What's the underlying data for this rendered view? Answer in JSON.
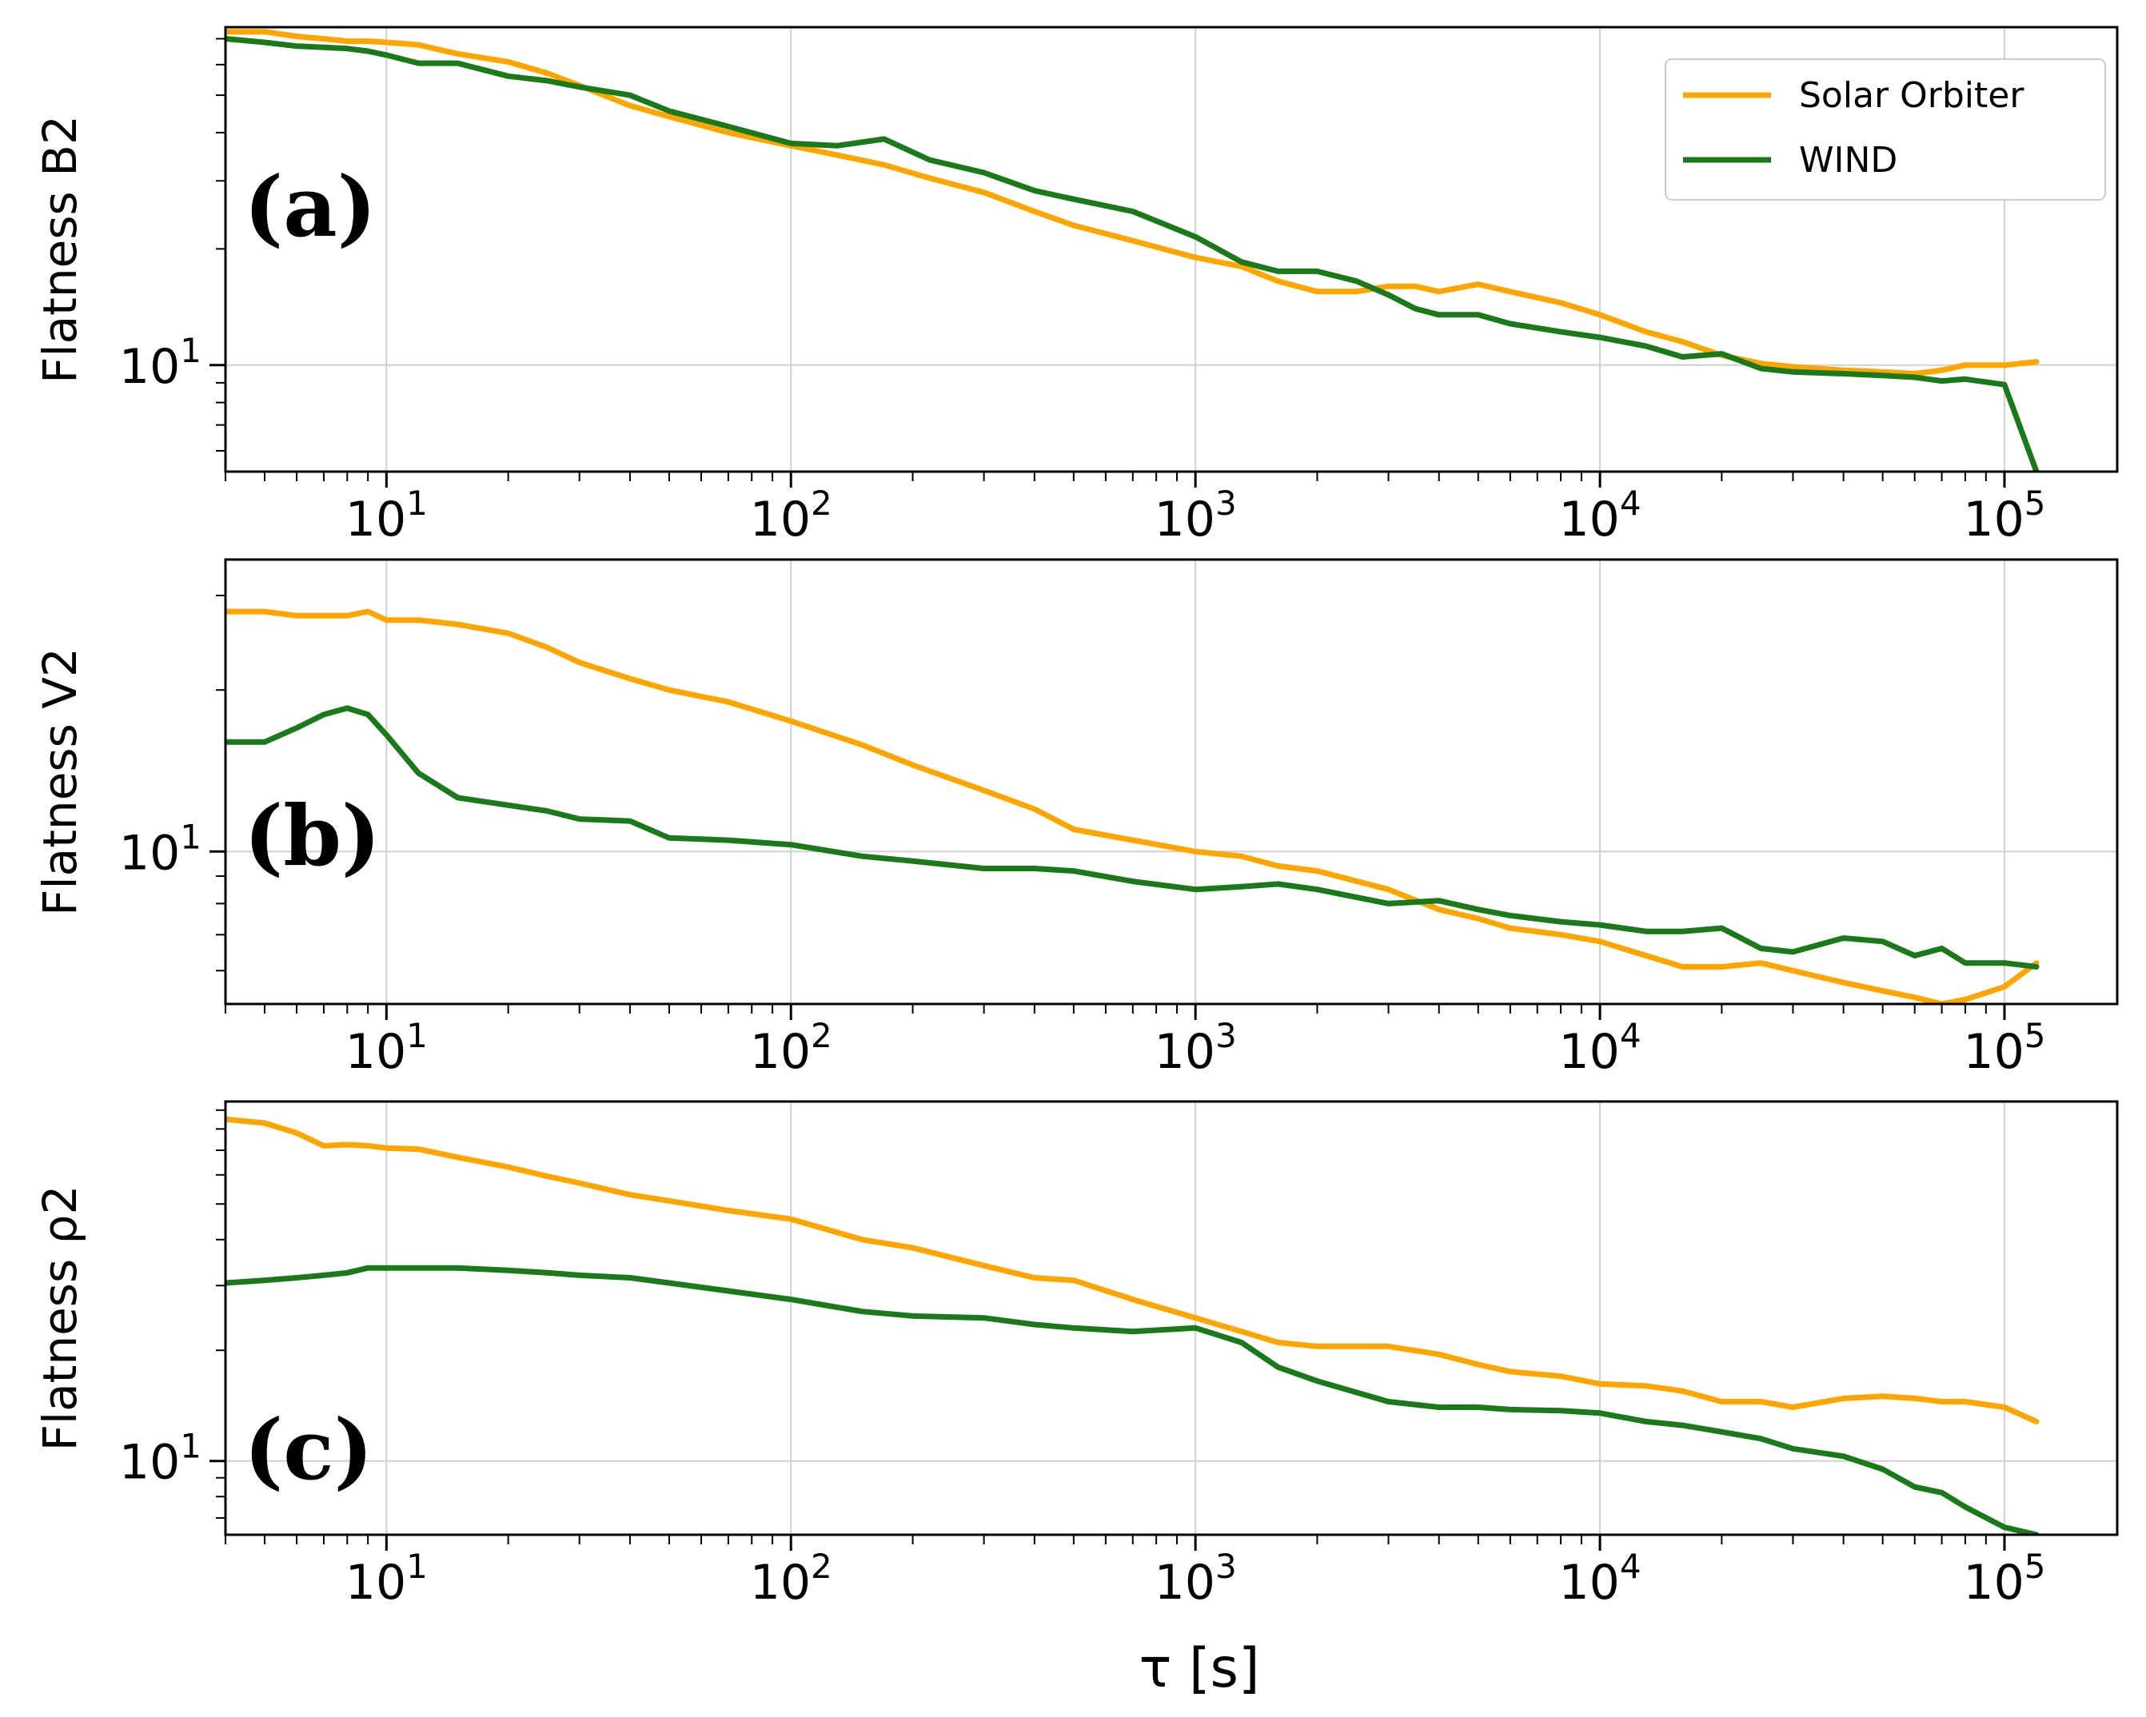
{
  "figure": {
    "xlabel": "τ [s]",
    "legend": {
      "placement": "top-right",
      "entries": [
        {
          "label": "Solar Orbiter",
          "color": "#FFA500"
        },
        {
          "label": "WIND",
          "color": "#1A7A1A"
        }
      ]
    }
  },
  "chart_data": [
    {
      "type": "line",
      "panel": "(a)",
      "ylabel": "Flatness B2",
      "xscale": "log",
      "yscale": "log",
      "xlim": [
        4,
        190000
      ],
      "ylim": [
        5.3,
        75
      ],
      "grid": true,
      "xtick_labels": [
        {
          "value": 10,
          "base": "10",
          "exp": "1"
        },
        {
          "value": 100,
          "base": "10",
          "exp": "2"
        },
        {
          "value": 1000,
          "base": "10",
          "exp": "3"
        },
        {
          "value": 10000,
          "base": "10",
          "exp": "4"
        },
        {
          "value": 100000,
          "base": "10",
          "exp": "5"
        }
      ],
      "ytick_labels": [
        {
          "value": 10,
          "base": "10",
          "exp": "1"
        }
      ],
      "series": [
        {
          "name": "Solar Orbiter",
          "x": [
            4,
            5,
            6,
            7,
            8,
            9,
            10,
            12,
            15,
            20,
            25,
            30,
            40,
            50,
            70,
            100,
            130,
            170,
            220,
            300,
            400,
            500,
            700,
            1000,
            1300,
            1600,
            2000,
            2500,
            3000,
            3500,
            4000,
            5000,
            6000,
            8000,
            10000,
            13000,
            16000,
            20000,
            25000,
            30000,
            40000,
            50000,
            60000,
            70000,
            80000,
            100000,
            120000
          ],
          "values": [
            73,
            73,
            71,
            70,
            69,
            69,
            68.5,
            67.5,
            64,
            61,
            57,
            53,
            47,
            44,
            40,
            37,
            35,
            33,
            30.5,
            28,
            25,
            23,
            21,
            19,
            18,
            16.5,
            15.5,
            15.5,
            16,
            16,
            15.5,
            16.2,
            15.5,
            14.5,
            13.5,
            12.2,
            11.5,
            10.6,
            10.1,
            9.9,
            9.7,
            9.6,
            9.5,
            9.7,
            10,
            10,
            10.2
          ]
        },
        {
          "name": "WIND",
          "x": [
            4,
            5,
            6,
            7,
            8,
            9,
            10,
            12,
            15,
            20,
            25,
            30,
            40,
            50,
            70,
            100,
            130,
            170,
            220,
            300,
            400,
            500,
            700,
            1000,
            1300,
            1600,
            2000,
            2500,
            3000,
            3500,
            4000,
            5000,
            6000,
            8000,
            10000,
            13000,
            16000,
            20000,
            25000,
            30000,
            40000,
            50000,
            60000,
            70000,
            80000,
            100000,
            120000
          ],
          "values": [
            70,
            68.5,
            67,
            66.5,
            66,
            65,
            63.5,
            60.5,
            60.5,
            56,
            54.5,
            52.5,
            50,
            45.5,
            41.5,
            37.5,
            37,
            38.5,
            34,
            31.5,
            28.3,
            26.9,
            25,
            21.5,
            18.5,
            17.5,
            17.5,
            16.5,
            15.2,
            14,
            13.5,
            13.5,
            12.8,
            12.2,
            11.8,
            11.2,
            10.5,
            10.7,
            9.8,
            9.6,
            9.5,
            9.4,
            9.3,
            9.1,
            9.2,
            8.9,
            5.3
          ]
        }
      ]
    },
    {
      "type": "line",
      "panel": "(b)",
      "ylabel": "Flatness V2",
      "xscale": "log",
      "yscale": "log",
      "xlim": [
        4,
        190000
      ],
      "ylim": [
        5.2,
        35
      ],
      "grid": true,
      "xtick_labels": [
        {
          "value": 10,
          "base": "10",
          "exp": "1"
        },
        {
          "value": 100,
          "base": "10",
          "exp": "2"
        },
        {
          "value": 1000,
          "base": "10",
          "exp": "3"
        },
        {
          "value": 10000,
          "base": "10",
          "exp": "4"
        },
        {
          "value": 100000,
          "base": "10",
          "exp": "5"
        }
      ],
      "ytick_labels": [
        {
          "value": 10,
          "base": "10",
          "exp": "1"
        }
      ],
      "series": [
        {
          "name": "Solar Orbiter",
          "x": [
            4,
            5,
            6,
            7,
            8,
            9,
            10,
            12,
            15,
            20,
            25,
            30,
            40,
            50,
            70,
            100,
            150,
            200,
            300,
            400,
            500,
            700,
            1000,
            1300,
            1600,
            2000,
            3000,
            4000,
            5000,
            6000,
            8000,
            10000,
            13000,
            16000,
            20000,
            25000,
            30000,
            40000,
            50000,
            60000,
            70000,
            80000,
            100000,
            120000
          ],
          "values": [
            28,
            28,
            27.5,
            27.5,
            27.5,
            28,
            27,
            27,
            26.5,
            25.5,
            24,
            22.5,
            21,
            20,
            19,
            17.5,
            15.8,
            14.5,
            13,
            12,
            11,
            10.5,
            10,
            9.8,
            9.4,
            9.2,
            8.5,
            7.8,
            7.5,
            7.2,
            7,
            6.8,
            6.4,
            6.1,
            6.1,
            6.2,
            6,
            5.7,
            5.5,
            5.35,
            5.2,
            5.3,
            5.6,
            6.2
          ]
        },
        {
          "name": "WIND",
          "x": [
            4,
            5,
            6,
            7,
            8,
            9,
            10,
            12,
            15,
            20,
            25,
            30,
            40,
            50,
            70,
            100,
            150,
            200,
            300,
            400,
            500,
            700,
            1000,
            1300,
            1600,
            2000,
            3000,
            4000,
            5000,
            6000,
            8000,
            10000,
            13000,
            16000,
            20000,
            25000,
            30000,
            40000,
            50000,
            60000,
            70000,
            80000,
            100000,
            120000
          ],
          "values": [
            16,
            16,
            17,
            18,
            18.5,
            18,
            16.5,
            14,
            12.6,
            12.2,
            11.9,
            11.5,
            11.4,
            10.6,
            10.5,
            10.3,
            9.8,
            9.6,
            9.3,
            9.3,
            9.2,
            8.8,
            8.5,
            8.6,
            8.7,
            8.5,
            8,
            8.1,
            7.8,
            7.6,
            7.4,
            7.3,
            7.1,
            7.1,
            7.2,
            6.6,
            6.5,
            6.9,
            6.8,
            6.4,
            6.6,
            6.2,
            6.2,
            6.1
          ]
        }
      ]
    },
    {
      "type": "line",
      "panel": "(c)",
      "ylabel": "Flatness ρ2",
      "xscale": "log",
      "yscale": "log",
      "xlim": [
        4,
        190000
      ],
      "ylim": [
        6.3,
        95
      ],
      "grid": true,
      "xtick_labels": [
        {
          "value": 10,
          "base": "10",
          "exp": "1"
        },
        {
          "value": 100,
          "base": "10",
          "exp": "2"
        },
        {
          "value": 1000,
          "base": "10",
          "exp": "3"
        },
        {
          "value": 10000,
          "base": "10",
          "exp": "4"
        },
        {
          "value": 100000,
          "base": "10",
          "exp": "5"
        }
      ],
      "ytick_labels": [
        {
          "value": 10,
          "base": "10",
          "exp": "1"
        }
      ],
      "series": [
        {
          "name": "Solar Orbiter",
          "x": [
            4,
            5,
            6,
            7,
            8,
            9,
            10,
            12,
            15,
            20,
            25,
            30,
            40,
            50,
            70,
            100,
            150,
            200,
            300,
            400,
            500,
            700,
            1000,
            1300,
            1600,
            2000,
            3000,
            4000,
            5000,
            6000,
            8000,
            10000,
            13000,
            16000,
            20000,
            25000,
            30000,
            40000,
            50000,
            60000,
            70000,
            80000,
            100000,
            120000
          ],
          "values": [
            85,
            83,
            78,
            72,
            72.5,
            72,
            71,
            70.5,
            67,
            63,
            59.5,
            57,
            53,
            51,
            48,
            45.5,
            40,
            38,
            34,
            31.5,
            31,
            27.5,
            24.5,
            22.5,
            21,
            20.5,
            20.5,
            19.5,
            18.3,
            17.5,
            17,
            16.2,
            16,
            15.5,
            14.5,
            14.5,
            14,
            14.8,
            15,
            14.8,
            14.5,
            14.5,
            14,
            12.8
          ]
        },
        {
          "name": "WIND",
          "x": [
            4,
            5,
            6,
            7,
            8,
            9,
            10,
            12,
            15,
            20,
            25,
            30,
            40,
            50,
            70,
            100,
            150,
            200,
            300,
            400,
            500,
            700,
            1000,
            1300,
            1600,
            2000,
            3000,
            4000,
            5000,
            6000,
            8000,
            10000,
            13000,
            16000,
            20000,
            25000,
            30000,
            40000,
            50000,
            60000,
            70000,
            80000,
            100000,
            120000
          ],
          "values": [
            30.5,
            31,
            31.5,
            32,
            32.5,
            33.5,
            33.5,
            33.5,
            33.5,
            33,
            32.5,
            32,
            31.5,
            30.5,
            29,
            27.5,
            25.5,
            24.8,
            24.5,
            23.5,
            23,
            22.5,
            23,
            21,
            18,
            16.5,
            14.5,
            14,
            14,
            13.8,
            13.7,
            13.5,
            12.8,
            12.5,
            12,
            11.5,
            10.8,
            10.3,
            9.5,
            8.5,
            8.2,
            7.5,
            6.6,
            6.3
          ]
        }
      ]
    }
  ]
}
